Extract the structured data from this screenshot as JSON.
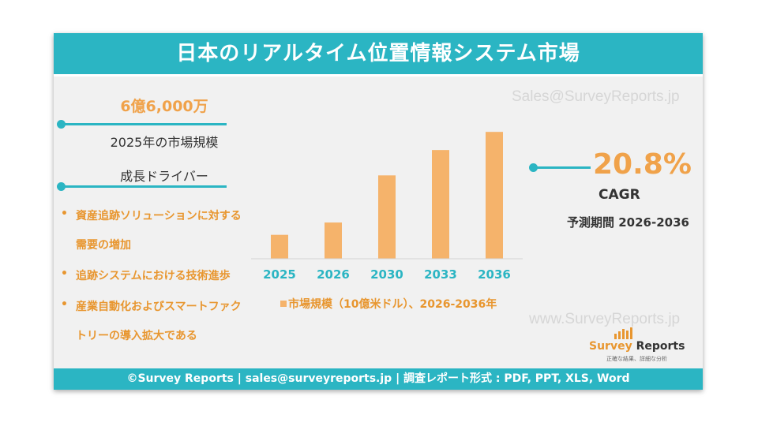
{
  "header": {
    "title": "日本のリアルタイム位置情報システム市場"
  },
  "watermarks": {
    "top": "Sales@SurveyReports.jp",
    "bottom": "www.SurveyReports.jp"
  },
  "left": {
    "market_value": "6億6,000万",
    "market_label": "2025年の市場規模",
    "drivers_title": "成長ドライバー",
    "bullet_symbol": "•",
    "drivers": [
      {
        "lines": [
          "資産追跡ソリューションに対する",
          "需要の増加"
        ]
      },
      {
        "lines": [
          "追跡システムにおける技術進歩"
        ]
      },
      {
        "lines": [
          "産業自動化およびスマートファク",
          "トリーの導入拡大である"
        ]
      }
    ]
  },
  "right": {
    "cagr_value": "20.8%",
    "cagr_label": "CAGR",
    "forecast_label": "予測期間 2026-2036"
  },
  "chart_data": {
    "type": "bar",
    "categories": [
      "2025",
      "2026",
      "2030",
      "2033",
      "2036"
    ],
    "values": [
      0.66,
      1.0,
      2.3,
      3.0,
      3.5
    ],
    "ylim": [
      0,
      3.7
    ],
    "legend": "市場規模（10億米ドル）、2026-2036年",
    "legend_position": "bottom",
    "grid": false,
    "colors": {
      "bar": "#f5b36b",
      "tick_label": "#2bb5c3"
    }
  },
  "logo": {
    "survey": "Survey",
    "reports": " Reports",
    "tagline": "正確な結果、詳細な分析"
  },
  "footer": {
    "text": "©Survey Reports | sales@surveyreports.jp |  調査レポート形式 : PDF, PPT, XLS, Word"
  }
}
